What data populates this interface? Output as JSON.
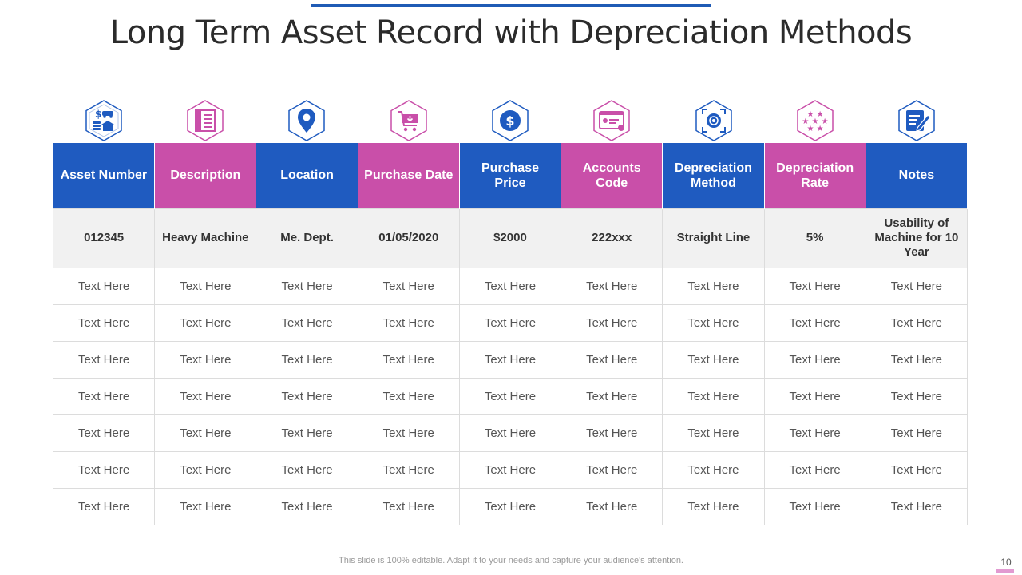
{
  "title": "Long Term Asset Record with Depreciation Methods",
  "colors": {
    "blue": "#1f5bc0",
    "pink": "#c94fa9",
    "row_bg": "#f1f1f1"
  },
  "icons": [
    {
      "name": "asset-money-icon",
      "color": "blue"
    },
    {
      "name": "document-icon",
      "color": "pink"
    },
    {
      "name": "location-pin-icon",
      "color": "blue"
    },
    {
      "name": "shopping-cart-icon",
      "color": "pink"
    },
    {
      "name": "dollar-coin-icon",
      "color": "blue"
    },
    {
      "name": "account-card-icon",
      "color": "pink"
    },
    {
      "name": "gear-frame-icon",
      "color": "blue"
    },
    {
      "name": "stars-icon",
      "color": "pink"
    },
    {
      "name": "notes-edit-icon",
      "color": "blue"
    }
  ],
  "table": {
    "headers": [
      "Asset Number",
      "Description",
      "Location",
      "Purchase Date",
      "Purchase Price",
      "Accounts Code",
      "Depreciation Method",
      "Depreciation Rate",
      "Notes"
    ],
    "first_row": [
      "012345",
      "Heavy Machine",
      "Me. Dept.",
      "01/05/2020",
      "$2000",
      "222xxx",
      "Straight Line",
      "5%",
      "Usability of Machine for 10 Year"
    ],
    "rows": [
      [
        "Text Here",
        "Text Here",
        "Text Here",
        "Text Here",
        "Text Here",
        "Text Here",
        "Text Here",
        "Text Here",
        "Text Here"
      ],
      [
        "Text Here",
        "Text Here",
        "Text Here",
        "Text Here",
        "Text Here",
        "Text Here",
        "Text Here",
        "Text Here",
        "Text Here"
      ],
      [
        "Text Here",
        "Text Here",
        "Text Here",
        "Text Here",
        "Text Here",
        "Text Here",
        "Text Here",
        "Text Here",
        "Text Here"
      ],
      [
        "Text Here",
        "Text Here",
        "Text Here",
        "Text Here",
        "Text Here",
        "Text Here",
        "Text Here",
        "Text Here",
        "Text Here"
      ],
      [
        "Text Here",
        "Text Here",
        "Text Here",
        "Text Here",
        "Text Here",
        "Text Here",
        "Text Here",
        "Text Here",
        "Text Here"
      ],
      [
        "Text Here",
        "Text Here",
        "Text Here",
        "Text Here",
        "Text Here",
        "Text Here",
        "Text Here",
        "Text Here",
        "Text Here"
      ],
      [
        "Text Here",
        "Text Here",
        "Text Here",
        "Text Here",
        "Text Here",
        "Text Here",
        "Text Here",
        "Text Here",
        "Text Here"
      ]
    ]
  },
  "footer": "This slide is 100% editable. Adapt it to your needs and capture your audience's attention.",
  "page_number": "10"
}
